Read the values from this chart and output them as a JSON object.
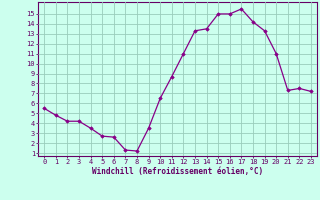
{
  "x": [
    0,
    1,
    2,
    3,
    4,
    5,
    6,
    7,
    8,
    9,
    10,
    11,
    12,
    13,
    14,
    15,
    16,
    17,
    18,
    19,
    20,
    21,
    22,
    23
  ],
  "y": [
    5.5,
    4.8,
    4.2,
    4.2,
    3.5,
    2.7,
    2.6,
    1.3,
    1.2,
    3.5,
    6.5,
    8.7,
    11.0,
    13.3,
    13.5,
    15.0,
    15.0,
    15.5,
    14.2,
    13.3,
    11.0,
    7.3,
    7.5,
    7.2
  ],
  "line_color": "#880088",
  "marker": "D",
  "marker_size": 1.8,
  "bg_color": "#ccffee",
  "grid_color": "#99ccbb",
  "xlabel": "Windchill (Refroidissement éolien,°C)",
  "xlim": [
    -0.5,
    23.5
  ],
  "ylim": [
    0.7,
    16.2
  ],
  "yticks": [
    1,
    2,
    3,
    4,
    5,
    6,
    7,
    8,
    9,
    10,
    11,
    12,
    13,
    14,
    15
  ],
  "xticks": [
    0,
    1,
    2,
    3,
    4,
    5,
    6,
    7,
    8,
    9,
    10,
    11,
    12,
    13,
    14,
    15,
    16,
    17,
    18,
    19,
    20,
    21,
    22,
    23
  ],
  "font_color": "#660066",
  "spine_color": "#660066",
  "tick_color": "#660066",
  "tick_fontsize": 5.0,
  "xlabel_fontsize": 5.5
}
